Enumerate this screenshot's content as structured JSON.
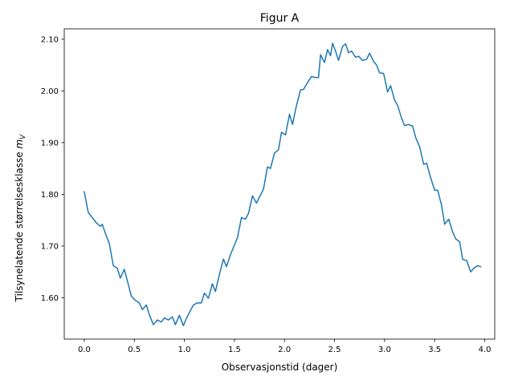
{
  "chart_data": {
    "type": "line",
    "title": "Figur A",
    "xlabel": "Observasjonstid (dager)",
    "ylabel_main": "Tilsynelatende størrelsesklasse ",
    "ylabel_sym": "m",
    "ylabel_sub": "V",
    "xlim": [
      -0.2,
      4.1
    ],
    "ylim": [
      1.52,
      2.12
    ],
    "xticks": [
      0.0,
      0.5,
      1.0,
      1.5,
      2.0,
      2.5,
      3.0,
      3.5,
      4.0
    ],
    "xtick_labels": [
      "0.0",
      "0.5",
      "1.0",
      "1.5",
      "2.0",
      "2.5",
      "3.0",
      "3.5",
      "4.0"
    ],
    "yticks": [
      1.6,
      1.7,
      1.8,
      1.9,
      2.0,
      2.1
    ],
    "ytick_labels": [
      "1.60",
      "1.70",
      "1.80",
      "1.90",
      "2.00",
      "2.10"
    ],
    "grid": false,
    "line_color": "#1f77b4",
    "series": [
      {
        "x": [
          0.0,
          0.04,
          0.08,
          0.12,
          0.16,
          0.18,
          0.21,
          0.25,
          0.29,
          0.33,
          0.36,
          0.4,
          0.43,
          0.47,
          0.51,
          0.55,
          0.58,
          0.62,
          0.65,
          0.69,
          0.73,
          0.77,
          0.8,
          0.84,
          0.88,
          0.91,
          0.95,
          0.99,
          1.02,
          1.06,
          1.09,
          1.13,
          1.17,
          1.2,
          1.24,
          1.28,
          1.31,
          1.35,
          1.39,
          1.42,
          1.46,
          1.5,
          1.53,
          1.57,
          1.61,
          1.64,
          1.68,
          1.72,
          1.75,
          1.79,
          1.83,
          1.86,
          1.9,
          1.94,
          1.97,
          2.01,
          2.05,
          2.08,
          2.12,
          2.16,
          2.19,
          2.23,
          2.27,
          2.3,
          2.34,
          2.36,
          2.4,
          2.43,
          2.46,
          2.48,
          2.51,
          2.54,
          2.58,
          2.61,
          2.64,
          2.67,
          2.71,
          2.74,
          2.78,
          2.82,
          2.85,
          2.89,
          2.92,
          2.95,
          2.99,
          3.03,
          3.06,
          3.1,
          3.13,
          3.17,
          3.2,
          3.24,
          3.28,
          3.31,
          3.35,
          3.39,
          3.42,
          3.46,
          3.5,
          3.53,
          3.57,
          3.6,
          3.64,
          3.68,
          3.71,
          3.75,
          3.78,
          3.82,
          3.86,
          3.89,
          3.93,
          3.96
        ],
        "y": [
          1.805,
          1.765,
          1.755,
          1.745,
          1.738,
          1.742,
          1.725,
          1.705,
          1.662,
          1.657,
          1.638,
          1.655,
          1.633,
          1.603,
          1.595,
          1.59,
          1.577,
          1.586,
          1.567,
          1.548,
          1.557,
          1.553,
          1.561,
          1.557,
          1.563,
          1.548,
          1.566,
          1.546,
          1.56,
          1.575,
          1.586,
          1.59,
          1.59,
          1.609,
          1.599,
          1.627,
          1.612,
          1.645,
          1.675,
          1.66,
          1.683,
          1.702,
          1.716,
          1.755,
          1.752,
          1.763,
          1.797,
          1.783,
          1.795,
          1.81,
          1.853,
          1.85,
          1.88,
          1.886,
          1.92,
          1.915,
          1.955,
          1.935,
          1.972,
          2.002,
          2.003,
          2.016,
          2.028,
          2.026,
          2.026,
          2.07,
          2.055,
          2.08,
          2.068,
          2.092,
          2.077,
          2.059,
          2.086,
          2.091,
          2.074,
          2.077,
          2.065,
          2.067,
          2.059,
          2.061,
          2.073,
          2.057,
          2.05,
          2.035,
          2.034,
          1.998,
          2.01,
          1.982,
          1.972,
          1.947,
          1.933,
          1.935,
          1.932,
          1.91,
          1.892,
          1.858,
          1.86,
          1.832,
          1.808,
          1.808,
          1.778,
          1.742,
          1.752,
          1.727,
          1.714,
          1.708,
          1.674,
          1.672,
          1.65,
          1.657,
          1.662,
          1.66
        ]
      }
    ]
  }
}
